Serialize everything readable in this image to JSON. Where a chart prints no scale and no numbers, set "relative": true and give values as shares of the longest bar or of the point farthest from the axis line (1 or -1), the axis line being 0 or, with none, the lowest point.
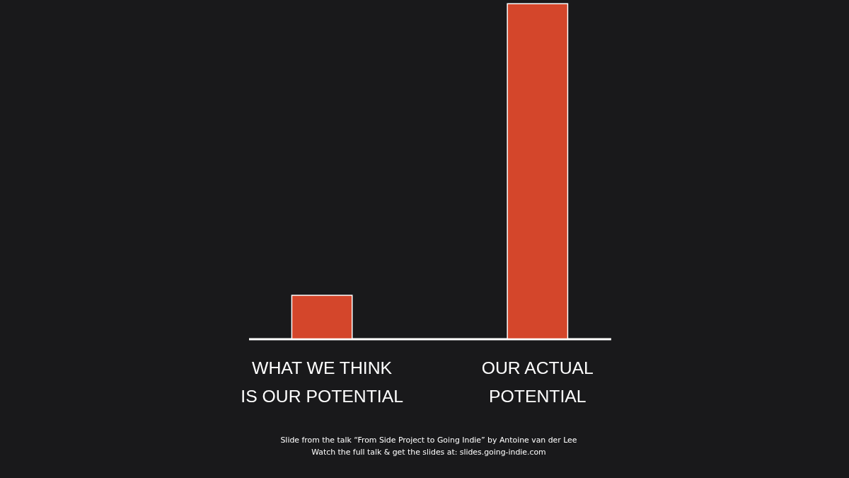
{
  "chart_data": {
    "type": "bar",
    "relative": true,
    "categories": [
      "WHAT WE THINK\nIS OUR POTENTIAL",
      "OUR ACTUAL\nPOTENTIAL"
    ],
    "values": [
      0.13,
      1
    ],
    "color": "#d4462b",
    "grid": false,
    "tick_labels": "x",
    "annotations": [
      "Slide from the talk “From Side Project to Going Indie” by Antoine van der Lee",
      "Watch the full talk & get the slides at: slides.going-indie.com"
    ]
  }
}
